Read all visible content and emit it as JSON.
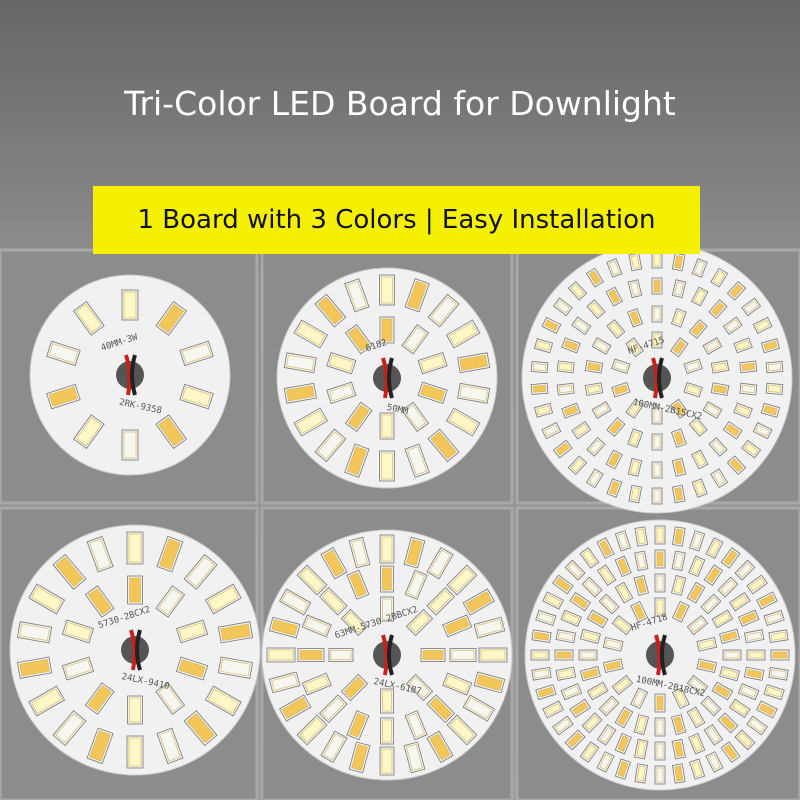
{
  "header": {
    "title": "Tri-Color LED Board for Downlight",
    "banner": "1 Board with 3 Colors | Easy Installation"
  },
  "boards": [
    {
      "labels": [
        "40MM-3W",
        "2RK-9358"
      ]
    },
    {
      "labels": [
        "6182",
        "50MM"
      ]
    },
    {
      "labels": [
        "HF-4715",
        "100MM-2B15CX2"
      ]
    },
    {
      "labels": [
        "5730-2BCX2",
        "24LX-9410"
      ]
    },
    {
      "labels": [
        "63MM-5730 2BBCX2",
        "24LX-6187"
      ]
    },
    {
      "labels": [
        "HF-4718",
        "100MM-2B18CX2"
      ]
    }
  ]
}
